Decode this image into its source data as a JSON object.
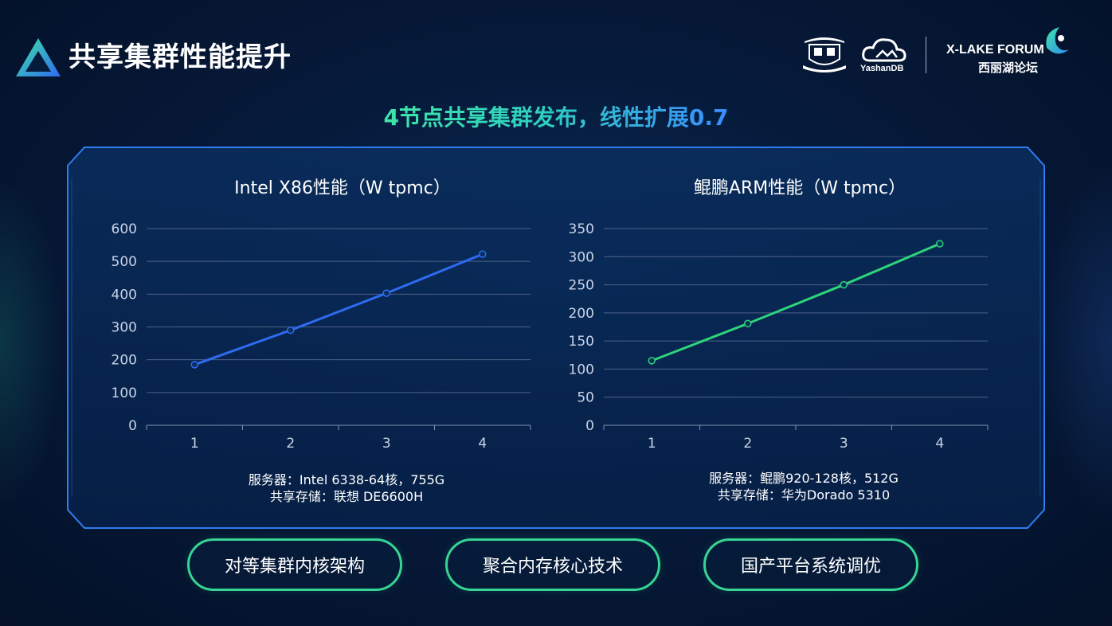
{
  "header": {
    "title": "共享集群性能提升",
    "partners": {
      "yashan_text": "YashanDB",
      "forum_en": "X-LAKE FORUM",
      "forum_cn": "西丽湖论坛"
    }
  },
  "subtitle": "4节点共享集群发布，线性扩展0.7",
  "colors": {
    "x86_line": "#2f6bf0",
    "arm_line": "#2ed47a",
    "pill_border": "#37d493",
    "frame_border": "#2f7df0"
  },
  "chart_data": [
    {
      "type": "line",
      "title": "Intel X86性能（W tpmc）",
      "categories": [
        "1",
        "2",
        "3",
        "4"
      ],
      "series": [
        {
          "values": [
            185,
            290,
            403,
            522
          ]
        }
      ],
      "ylim": [
        0,
        600
      ],
      "yticks": [
        "0",
        "100",
        "200",
        "300",
        "400",
        "500",
        "600"
      ],
      "grid": true,
      "note": [
        "服务器：Intel 6338-64核，755G",
        "共享存储：联想 DE6600H"
      ]
    },
    {
      "type": "line",
      "title": "鲲鹏ARM性能（W tpmc）",
      "categories": [
        "1",
        "2",
        "3",
        "4"
      ],
      "series": [
        {
          "values": [
            115,
            181,
            250,
            323
          ]
        }
      ],
      "ylim": [
        0,
        350
      ],
      "yticks": [
        "0",
        "50",
        "100",
        "150",
        "200",
        "250",
        "300",
        "350"
      ],
      "grid": true,
      "note": [
        "服务器：鲲鹏920-128核，512G",
        "共享存储：华为Dorado 5310"
      ]
    }
  ],
  "buttons": [
    {
      "label": "对等集群内核架构"
    },
    {
      "label": "聚合内存核心技术"
    },
    {
      "label": "国产平台系统调优"
    }
  ]
}
